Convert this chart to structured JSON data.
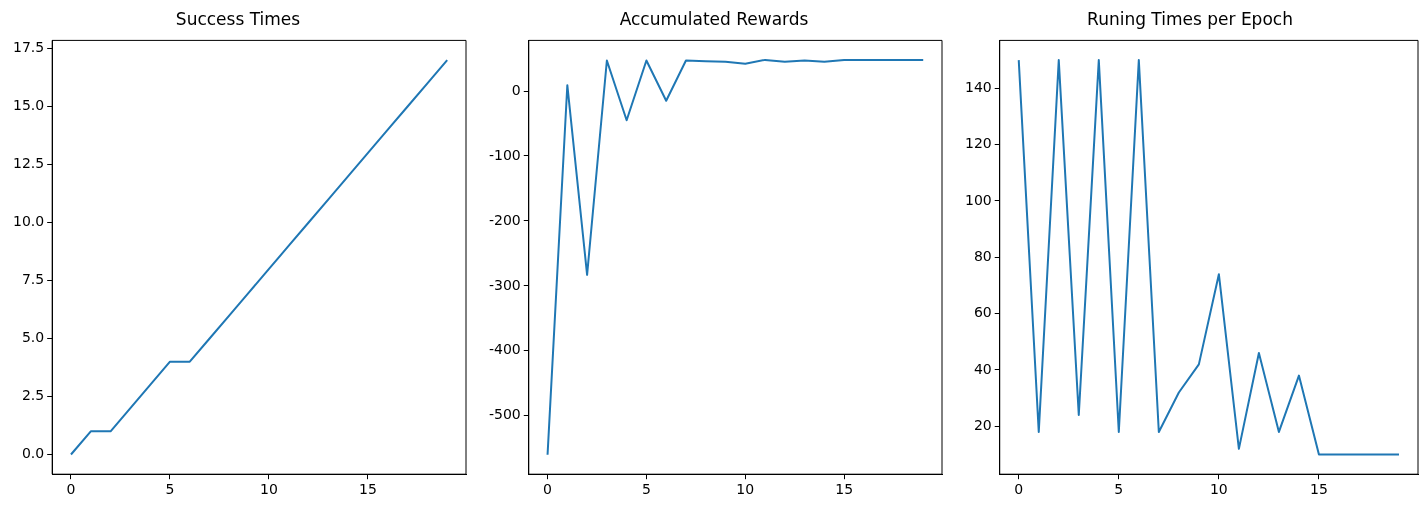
{
  "chart_data": [
    {
      "type": "line",
      "title": "Success Times",
      "x": [
        0,
        1,
        2,
        3,
        4,
        5,
        6,
        7,
        8,
        9,
        10,
        11,
        12,
        13,
        14,
        15,
        16,
        17,
        18,
        19
      ],
      "series": [
        {
          "color": "#1f77b4",
          "values": [
            0,
            1,
            1,
            2,
            3,
            4,
            4,
            5,
            6,
            7,
            8,
            9,
            10,
            11,
            12,
            13,
            14,
            15,
            16,
            17
          ]
        }
      ],
      "xlim": [
        -0.95,
        19.95
      ],
      "xticks": [
        0,
        5,
        10,
        15
      ],
      "ylim": [
        -0.85,
        17.85
      ],
      "yticks": [
        {
          "value": 0,
          "label": "0.0"
        },
        {
          "value": 2.5,
          "label": "2.5"
        },
        {
          "value": 5,
          "label": "5.0"
        },
        {
          "value": 7.5,
          "label": "7.5"
        },
        {
          "value": 10,
          "label": "10.0"
        },
        {
          "value": 12.5,
          "label": "12.5"
        },
        {
          "value": 15,
          "label": "15.0"
        },
        {
          "value": 17.5,
          "label": "17.5"
        }
      ]
    },
    {
      "type": "line",
      "title": "Accumulated Rewards",
      "x": [
        0,
        1,
        2,
        3,
        4,
        5,
        6,
        7,
        8,
        9,
        10,
        11,
        12,
        13,
        14,
        15,
        16,
        17,
        18,
        19
      ],
      "series": [
        {
          "color": "#1f77b4",
          "values": [
            -560,
            9,
            -283,
            47,
            -45,
            47,
            -15,
            47,
            46,
            45,
            42,
            48,
            45,
            47,
            45,
            48,
            48,
            48,
            48,
            48
          ]
        }
      ],
      "xlim": [
        -0.95,
        19.95
      ],
      "xticks": [
        0,
        5,
        10,
        15
      ],
      "ylim": [
        -590,
        78
      ],
      "yticks": [
        -500,
        -400,
        -300,
        -200,
        -100,
        0
      ]
    },
    {
      "type": "line",
      "title": "Runing Times per Epoch",
      "x": [
        0,
        1,
        2,
        3,
        4,
        5,
        6,
        7,
        8,
        9,
        10,
        11,
        12,
        13,
        14,
        15,
        16,
        17,
        18,
        19
      ],
      "series": [
        {
          "color": "#1f77b4",
          "values": [
            150,
            18,
            150,
            24,
            150,
            18,
            150,
            18,
            32,
            42,
            74,
            12,
            46,
            18,
            38,
            10,
            10,
            10,
            10,
            10
          ]
        }
      ],
      "xlim": [
        -0.95,
        19.95
      ],
      "xticks": [
        0,
        5,
        10,
        15
      ],
      "ylim": [
        3,
        157
      ],
      "yticks": [
        20,
        40,
        60,
        80,
        100,
        120,
        140
      ]
    }
  ]
}
